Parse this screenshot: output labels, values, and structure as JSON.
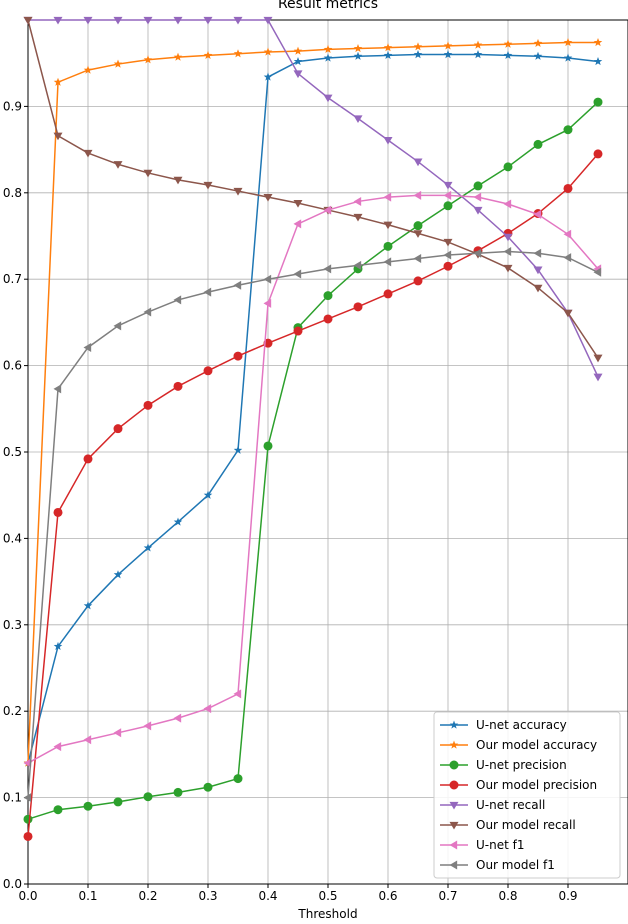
{
  "chart_data": {
    "type": "line",
    "title": "Result metrics",
    "x_label": "Threshold",
    "x": [
      0,
      0.05,
      0.1,
      0.15,
      0.2,
      0.25,
      0.3,
      0.35,
      0.4,
      0.45,
      0.5,
      0.55,
      0.6,
      0.65,
      0.7,
      0.75,
      0.8,
      0.85,
      0.9,
      0.95
    ],
    "xlim": [
      0,
      1.0
    ],
    "ylim": [
      0,
      1.0
    ],
    "xticks": [
      {
        "value": 0,
        "label": "0.0"
      },
      0.1,
      0.2,
      0.3,
      0.4,
      0.5,
      0.6,
      0.7,
      0.8,
      0.9
    ],
    "yticks": [
      {
        "value": 0,
        "label": "0.0"
      },
      0.1,
      0.2,
      0.3,
      0.4,
      0.5,
      0.6,
      0.7,
      0.8,
      0.9
    ],
    "grid": true,
    "legend_position": "lower right",
    "series": [
      {
        "name": "U-net accuracy",
        "color": "#1f77b4",
        "marker": "star",
        "values": [
          0.14,
          0.275,
          0.322,
          0.358,
          0.389,
          0.419,
          0.45,
          0.502,
          0.934,
          0.952,
          0.956,
          0.958,
          0.959,
          0.96,
          0.96,
          0.96,
          0.959,
          0.958,
          0.956,
          0.952
        ]
      },
      {
        "name": "Our model accuracy",
        "color": "#ff7f0e",
        "marker": "star",
        "values": [
          0.14,
          0.928,
          0.942,
          0.949,
          0.954,
          0.957,
          0.959,
          0.961,
          0.963,
          0.964,
          0.966,
          0.967,
          0.968,
          0.969,
          0.97,
          0.971,
          0.972,
          0.973,
          0.974,
          0.974
        ]
      },
      {
        "name": "U-net precision",
        "color": "#2ca02c",
        "marker": "circle",
        "values": [
          0.075,
          0.086,
          0.09,
          0.095,
          0.101,
          0.106,
          0.112,
          0.122,
          0.507,
          0.644,
          0.681,
          0.712,
          0.738,
          0.762,
          0.785,
          0.808,
          0.83,
          0.856,
          0.873,
          0.905
        ]
      },
      {
        "name": "Our model precision",
        "color": "#d62728",
        "marker": "circle",
        "values": [
          0.055,
          0.43,
          0.492,
          0.527,
          0.554,
          0.576,
          0.594,
          0.611,
          0.626,
          0.64,
          0.654,
          0.668,
          0.683,
          0.698,
          0.715,
          0.733,
          0.753,
          0.776,
          0.805,
          0.845
        ]
      },
      {
        "name": "U-net recall",
        "color": "#9467bd",
        "marker": "triangle-down",
        "values": [
          1.0,
          1.0,
          1.0,
          1.0,
          1.0,
          1.0,
          1.0,
          1.0,
          1.0,
          0.938,
          0.91,
          0.886,
          0.861,
          0.836,
          0.809,
          0.78,
          0.749,
          0.711,
          0.661,
          0.587
        ]
      },
      {
        "name": "Our model recall",
        "color": "#8c564b",
        "marker": "triangle-down",
        "values": [
          1.0,
          0.866,
          0.846,
          0.833,
          0.823,
          0.815,
          0.809,
          0.802,
          0.795,
          0.788,
          0.78,
          0.772,
          0.763,
          0.753,
          0.743,
          0.729,
          0.713,
          0.69,
          0.661,
          0.609
        ]
      },
      {
        "name": "U-net f1",
        "color": "#e377c2",
        "marker": "triangle-left",
        "values": [
          0.14,
          0.159,
          0.167,
          0.175,
          0.183,
          0.192,
          0.203,
          0.22,
          0.672,
          0.764,
          0.78,
          0.79,
          0.795,
          0.797,
          0.797,
          0.795,
          0.787,
          0.775,
          0.752,
          0.712
        ]
      },
      {
        "name": "Our model f1",
        "color": "#7f7f7f",
        "marker": "triangle-left",
        "values": [
          0.1,
          0.573,
          0.621,
          0.646,
          0.662,
          0.676,
          0.685,
          0.693,
          0.7,
          0.706,
          0.712,
          0.716,
          0.72,
          0.724,
          0.728,
          0.73,
          0.732,
          0.73,
          0.725,
          0.708
        ]
      }
    ]
  }
}
